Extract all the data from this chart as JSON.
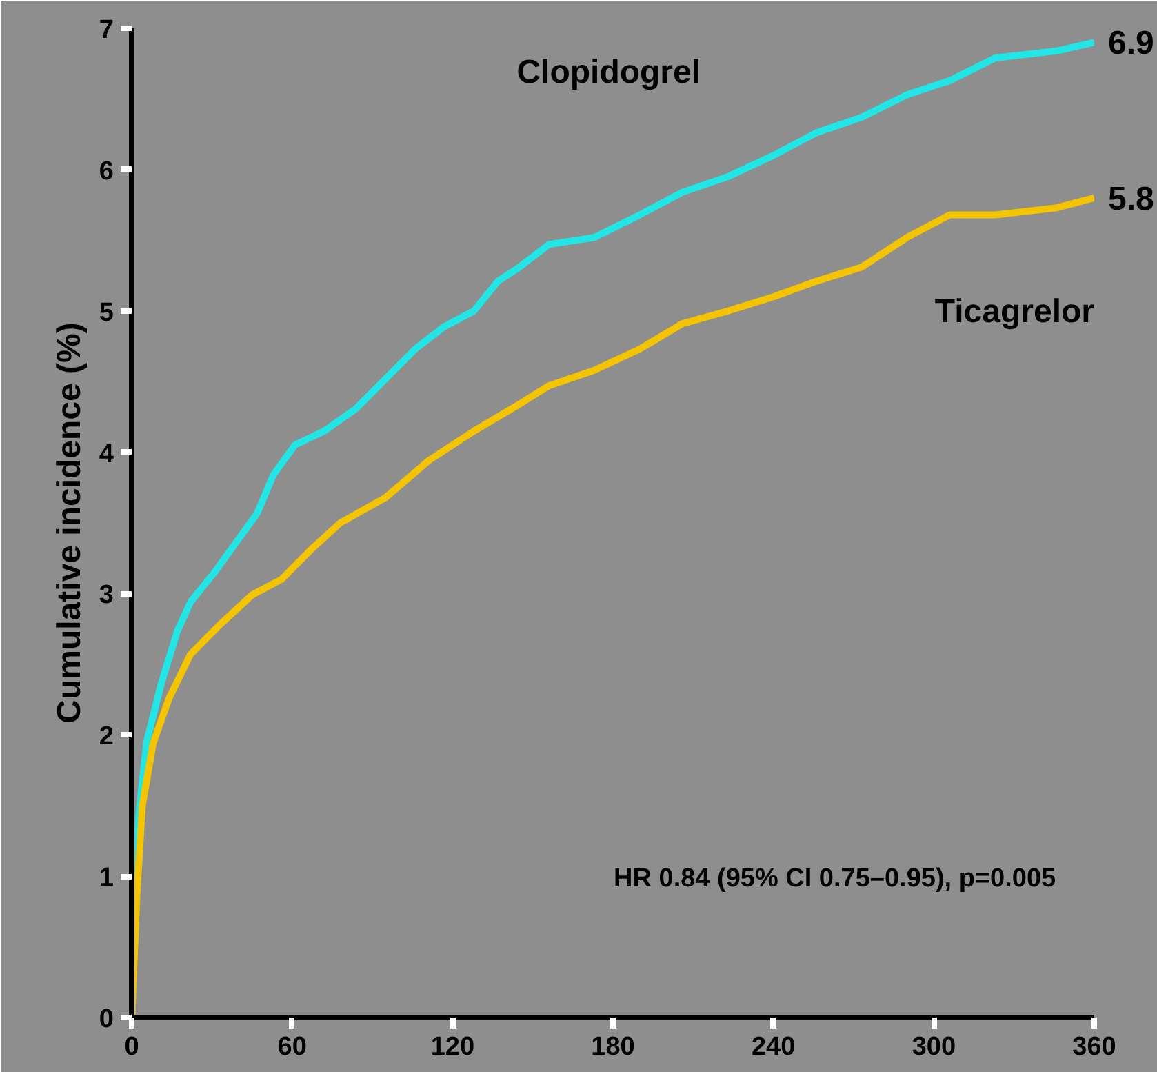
{
  "chart_data": {
    "type": "line",
    "ylabel": "Cumulative incidence (%)",
    "xlim": [
      0,
      360
    ],
    "ylim": [
      0,
      7
    ],
    "xticks": [
      0,
      60,
      120,
      180,
      240,
      300,
      360
    ],
    "yticks": [
      0,
      1,
      2,
      3,
      4,
      5,
      6,
      7
    ],
    "grid": false,
    "legend": false,
    "marker": "none",
    "line_style": "solid",
    "series": [
      {
        "name": "Clopidogrel",
        "color": "#22e5e5",
        "x": [
          0,
          1,
          3,
          5.6,
          11,
          17,
          22,
          31,
          39,
          47,
          53,
          61,
          72,
          84,
          95,
          106,
          117,
          128,
          137,
          145,
          156,
          173,
          190,
          206,
          223,
          240,
          256,
          273,
          290,
          306,
          323,
          346,
          360
        ],
        "values": [
          0,
          1.0,
          1.5,
          1.95,
          2.36,
          2.73,
          2.94,
          3.15,
          3.36,
          3.57,
          3.84,
          4.05,
          4.15,
          4.31,
          4.52,
          4.73,
          4.89,
          5.0,
          5.21,
          5.31,
          5.47,
          5.52,
          5.68,
          5.84,
          5.95,
          6.1,
          6.26,
          6.37,
          6.53,
          6.63,
          6.79,
          6.84,
          6.9
        ]
      },
      {
        "name": "Ticagrelor",
        "color": "#f5c400",
        "x": [
          0,
          2,
          4,
          8,
          14,
          22,
          33,
          45,
          56,
          67,
          78,
          95,
          111,
          128,
          145,
          156,
          173,
          190,
          206,
          223,
          240,
          256,
          273,
          290,
          306,
          323,
          346,
          360
        ],
        "values": [
          0,
          0.89,
          1.5,
          1.94,
          2.26,
          2.57,
          2.78,
          2.99,
          3.1,
          3.31,
          3.5,
          3.68,
          3.94,
          4.15,
          4.34,
          4.47,
          4.58,
          4.73,
          4.91,
          5.0,
          5.1,
          5.21,
          5.31,
          5.52,
          5.68,
          5.68,
          5.73,
          5.8
        ]
      }
    ],
    "annotations": [
      {
        "text": "6.9",
        "x": 360,
        "y": 6.9
      },
      {
        "text": "5.8",
        "x": 360,
        "y": 5.8
      },
      "HR 0.84 (95% CI 0.75–0.95), p=0.005"
    ]
  }
}
